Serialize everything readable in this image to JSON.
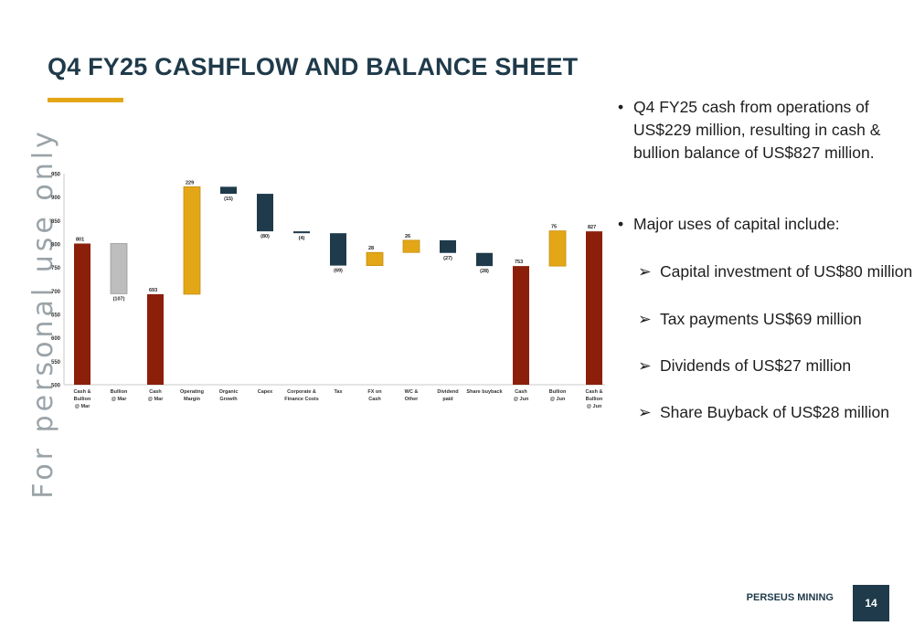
{
  "page": {
    "title": "Q4 FY25 CASHFLOW AND BALANCE SHEET",
    "watermark": "For personal use only",
    "footer_brand": "PERSEUS MINING",
    "page_number": "14",
    "colors": {
      "title": "#1f3a4a",
      "accent_gold": "#e2a617",
      "total_red": "#8b1f0a",
      "negative_navy": "#1f3a4a",
      "bullion_grey": "#bdbdbd"
    }
  },
  "bullets": {
    "b1": "Q4 FY25 cash from operations of US$229 million, resulting in cash & bullion balance of US$827 million.",
    "b2": "Major uses of capital include:",
    "subs": [
      "Capital investment of US$80 million",
      "Tax payments US$69 million",
      "Dividends of US$27 million",
      "Share Buyback  of US$28 million"
    ],
    "bullet_glyph": "•",
    "arrow_glyph": "➢"
  },
  "chart_data": {
    "type": "bar",
    "subtype": "waterfall",
    "ylim": [
      500,
      950
    ],
    "yticks": [
      500,
      550,
      600,
      650,
      700,
      750,
      800,
      850,
      900,
      950
    ],
    "grid": false,
    "categories": [
      [
        "Cash &",
        "Bullion",
        "@ Mar"
      ],
      [
        "Bullion",
        "@ Mar"
      ],
      [
        "Cash",
        "@ Mar"
      ],
      [
        "Operating",
        "Margin"
      ],
      [
        "Organic",
        "Growth"
      ],
      [
        "Capex"
      ],
      [
        "Corporate &",
        "Finance Costs"
      ],
      [
        "Tax"
      ],
      [
        "FX on",
        "Cash"
      ],
      [
        "WC &",
        "Other"
      ],
      [
        "Dividend",
        "paid"
      ],
      [
        "Share buyback"
      ],
      [
        "Cash",
        "@ Jun"
      ],
      [
        "Bullion",
        "@ Jun"
      ],
      [
        "Cash &",
        "Bullion",
        "@ Jun"
      ]
    ],
    "bars": [
      {
        "low": 500,
        "high": 801,
        "kind": "total",
        "label": "801",
        "label_pos": "top"
      },
      {
        "low": 694,
        "high": 801,
        "kind": "bullion",
        "label": "(107)",
        "label_pos": "bottom"
      },
      {
        "low": 500,
        "high": 693,
        "kind": "total",
        "label": "693",
        "label_pos": "top"
      },
      {
        "low": 693,
        "high": 922,
        "kind": "positive",
        "label": "229",
        "label_pos": "top"
      },
      {
        "low": 907,
        "high": 922,
        "kind": "negative",
        "label": "(15)",
        "label_pos": "bottom"
      },
      {
        "low": 827,
        "high": 907,
        "kind": "negative",
        "label": "(80)",
        "label_pos": "bottom"
      },
      {
        "low": 823,
        "high": 827,
        "kind": "negative",
        "label": "(4)",
        "label_pos": "bottom"
      },
      {
        "low": 754,
        "high": 823,
        "kind": "negative",
        "label": "(69)",
        "label_pos": "bottom"
      },
      {
        "low": 754,
        "high": 782,
        "kind": "positive",
        "label": "28",
        "label_pos": "top"
      },
      {
        "low": 782,
        "high": 808,
        "kind": "positive",
        "label": "26",
        "label_pos": "top"
      },
      {
        "low": 781,
        "high": 808,
        "kind": "negative",
        "label": "(27)",
        "label_pos": "bottom"
      },
      {
        "low": 753,
        "high": 781,
        "kind": "negative",
        "label": "(28)",
        "label_pos": "bottom"
      },
      {
        "low": 500,
        "high": 753,
        "kind": "total",
        "label": "753",
        "label_pos": "top"
      },
      {
        "low": 753,
        "high": 828,
        "kind": "positive",
        "label": "75",
        "label_pos": "top"
      },
      {
        "low": 500,
        "high": 827,
        "kind": "total",
        "label": "827",
        "label_pos": "top"
      }
    ]
  }
}
